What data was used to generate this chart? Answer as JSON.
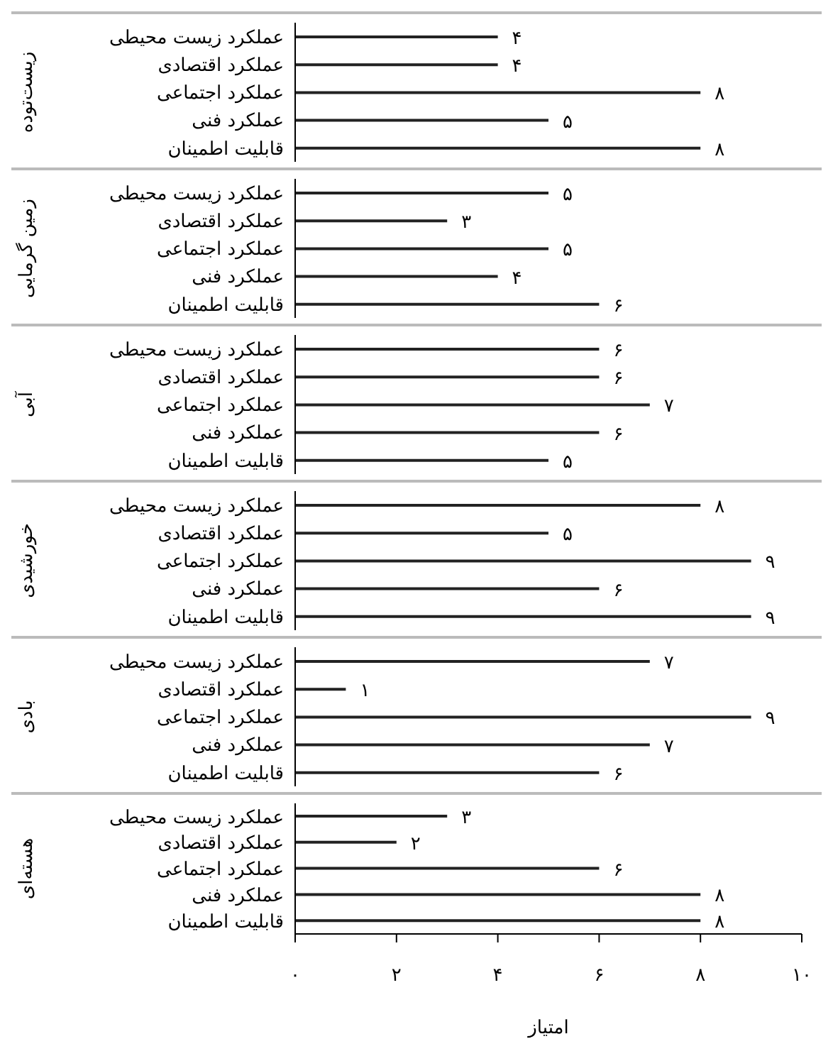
{
  "chart_data": [
    {
      "type": "bar",
      "orientation": "horizontal",
      "ylabel": "زیست‌توده",
      "categories": [
        "عملکرد زیست محیطی",
        "عملکرد اقتصادی",
        "عملکرد اجتماعی",
        "عملکرد فنی",
        "قابلیت اطمینان"
      ],
      "values": [
        4,
        4,
        8,
        5,
        8
      ],
      "value_labels": [
        "۴",
        "۴",
        "۸",
        "۵",
        "۸"
      ],
      "color": "#222222",
      "xlim": [
        0,
        10
      ],
      "tick_labels": "y"
    },
    {
      "type": "bar",
      "orientation": "horizontal",
      "ylabel": "زمین گرمایی",
      "categories": [
        "عملکرد زیست محیطی",
        "عملکرد اقتصادی",
        "عملکرد اجتماعی",
        "عملکرد فنی",
        "قابلیت اطمینان"
      ],
      "values": [
        5,
        3,
        5,
        4,
        6
      ],
      "value_labels": [
        "۵",
        "۳",
        "۵",
        "۴",
        "۶"
      ],
      "color": "#222222",
      "xlim": [
        0,
        10
      ],
      "tick_labels": "y"
    },
    {
      "type": "bar",
      "orientation": "horizontal",
      "ylabel": "آبی",
      "categories": [
        "عملکرد زیست محیطی",
        "عملکرد اقتصادی",
        "عملکرد اجتماعی",
        "عملکرد فنی",
        "قابلیت اطمینان"
      ],
      "values": [
        6,
        6,
        7,
        6,
        5
      ],
      "value_labels": [
        "۶",
        "۶",
        "۷",
        "۶",
        "۵"
      ],
      "color": "#222222",
      "xlim": [
        0,
        10
      ],
      "tick_labels": "y"
    },
    {
      "type": "bar",
      "orientation": "horizontal",
      "ylabel": "خورشیدی",
      "categories": [
        "عملکرد زیست محیطی",
        "عملکرد اقتصادی",
        "عملکرد اجتماعی",
        "عملکرد فنی",
        "قابلیت اطمینان"
      ],
      "values": [
        8,
        5,
        9,
        6,
        9
      ],
      "value_labels": [
        "۸",
        "۵",
        "۹",
        "۶",
        "۹"
      ],
      "color": "#222222",
      "xlim": [
        0,
        10
      ],
      "tick_labels": "y"
    },
    {
      "type": "bar",
      "orientation": "horizontal",
      "ylabel": "بادی",
      "categories": [
        "عملکرد زیست محیطی",
        "عملکرد اقتصادی",
        "عملکرد اجتماعی",
        "عملکرد فنی",
        "قابلیت اطمینان"
      ],
      "values": [
        7,
        1,
        9,
        7,
        6
      ],
      "value_labels": [
        "۷",
        "۱",
        "۹",
        "۷",
        "۶"
      ],
      "color": "#222222",
      "xlim": [
        0,
        10
      ],
      "tick_labels": "y"
    },
    {
      "type": "bar",
      "orientation": "horizontal",
      "ylabel": "هسته‌ای",
      "xlabel": "امتیاز",
      "categories": [
        "عملکرد زیست محیطی",
        "عملکرد اقتصادی",
        "عملکرد اجتماعی",
        "عملکرد فنی",
        "قابلیت اطمینان"
      ],
      "values": [
        3,
        2,
        6,
        8,
        8
      ],
      "value_labels": [
        "۳",
        "۲",
        "۶",
        "۸",
        "۸"
      ],
      "color": "#222222",
      "xlim": [
        0,
        10
      ],
      "xticks": [
        {
          "value": 0,
          "label": "۰"
        },
        {
          "value": 2,
          "label": "۲"
        },
        {
          "value": 4,
          "label": "۴"
        },
        {
          "value": 6,
          "label": "۶"
        },
        {
          "value": 8,
          "label": "۸"
        },
        {
          "value": 10,
          "label": "۱۰"
        }
      ]
    }
  ]
}
